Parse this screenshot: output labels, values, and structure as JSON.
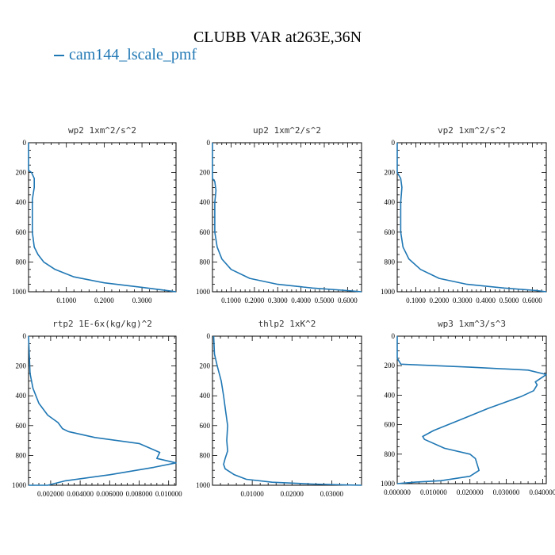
{
  "figure": {
    "title": "CLUBB VAR at263E,36N",
    "legend_label": "cam144_lscale_pmf",
    "line_color": "#1f77b4"
  },
  "chart_data": [
    {
      "type": "line",
      "title": "wp2  1xm^2/s^2",
      "ylim": [
        0,
        1000
      ],
      "yticks": [
        "0",
        "200",
        "400",
        "600",
        "800",
        "1000"
      ],
      "xlim": [
        0,
        0.39
      ],
      "xticks": [
        {
          "v": 0.1,
          "label": "0.1000"
        },
        {
          "v": 0.2,
          "label": "0.2000"
        },
        {
          "v": 0.3,
          "label": "0.3000"
        }
      ],
      "series": [
        {
          "name": "cam144_lscale_pmf",
          "x": [
            0.0,
            0.0,
            0.008,
            0.015,
            0.015,
            0.01,
            0.01,
            0.01,
            0.015,
            0.025,
            0.04,
            0.07,
            0.12,
            0.2,
            0.3,
            0.36,
            0.39
          ],
          "y": [
            0,
            185,
            200,
            240,
            300,
            380,
            500,
            600,
            700,
            750,
            800,
            850,
            900,
            940,
            970,
            990,
            1000
          ]
        }
      ]
    },
    {
      "type": "line",
      "title": "up2  1xm^2/s^2",
      "ylim": [
        0,
        1000
      ],
      "yticks": [
        "0",
        "200",
        "400",
        "600",
        "800",
        "1000"
      ],
      "xlim": [
        0.02,
        0.66
      ],
      "xticks": [
        {
          "v": 0.1,
          "label": "0.1000"
        },
        {
          "v": 0.2,
          "label": "0.2000"
        },
        {
          "v": 0.3,
          "label": "0.3000"
        },
        {
          "v": 0.4,
          "label": "0.4000"
        },
        {
          "v": 0.5,
          "label": "0.5000"
        },
        {
          "v": 0.6,
          "label": "0.6000"
        }
      ],
      "series": [
        {
          "name": "cam144_lscale_pmf",
          "x": [
            0.02,
            0.02,
            0.03,
            0.035,
            0.03,
            0.03,
            0.03,
            0.04,
            0.06,
            0.1,
            0.18,
            0.3,
            0.45,
            0.6,
            0.66
          ],
          "y": [
            0,
            240,
            260,
            320,
            400,
            500,
            600,
            700,
            780,
            850,
            910,
            950,
            975,
            992,
            1000
          ]
        }
      ]
    },
    {
      "type": "line",
      "title": "vp2  1xm^2/s^2",
      "ylim": [
        0,
        1000
      ],
      "yticks": [
        "0",
        "200",
        "400",
        "600",
        "800",
        "1000"
      ],
      "xlim": [
        0.02,
        0.66
      ],
      "xticks": [
        {
          "v": 0.1,
          "label": "0.1000"
        },
        {
          "v": 0.2,
          "label": "0.2000"
        },
        {
          "v": 0.3,
          "label": "0.3000"
        },
        {
          "v": 0.4,
          "label": "0.4000"
        },
        {
          "v": 0.5,
          "label": "0.5000"
        },
        {
          "v": 0.6,
          "label": "0.6000"
        }
      ],
      "series": [
        {
          "name": "cam144_lscale_pmf",
          "x": [
            0.02,
            0.02,
            0.035,
            0.04,
            0.035,
            0.035,
            0.035,
            0.045,
            0.07,
            0.12,
            0.2,
            0.32,
            0.48,
            0.62,
            0.66
          ],
          "y": [
            0,
            200,
            240,
            300,
            400,
            500,
            600,
            700,
            780,
            850,
            910,
            950,
            975,
            992,
            1000
          ]
        }
      ]
    },
    {
      "type": "line",
      "title": "rtp2  1E-6x(kg/kg)^2",
      "ylim": [
        0,
        1000
      ],
      "yticks": [
        "0",
        "200",
        "400",
        "600",
        "800",
        "1000"
      ],
      "xlim": [
        0.0005,
        0.0105
      ],
      "xticks": [
        {
          "v": 0.002,
          "label": "0.002000"
        },
        {
          "v": 0.004,
          "label": "0.004000"
        },
        {
          "v": 0.006,
          "label": "0.006000"
        },
        {
          "v": 0.008,
          "label": "0.008000"
        },
        {
          "v": 0.01,
          "label": "0.010000"
        }
      ],
      "series": [
        {
          "name": "cam144_lscale_pmf",
          "x": [
            0.0005,
            0.0006,
            0.0008,
            0.0012,
            0.0018,
            0.0025,
            0.0028,
            0.0032,
            0.005,
            0.008,
            0.0094,
            0.0092,
            0.0105,
            0.009,
            0.006,
            0.003,
            0.0018,
            0.0005
          ],
          "y": [
            0,
            250,
            350,
            450,
            530,
            580,
            620,
            640,
            680,
            720,
            780,
            820,
            850,
            880,
            930,
            970,
            1000,
            1000
          ]
        }
      ]
    },
    {
      "type": "line",
      "title": "thlp2  1xK^2",
      "ylim": [
        0,
        1000
      ],
      "yticks": [
        "0",
        "200",
        "400",
        "600",
        "800",
        "1000"
      ],
      "xlim": [
        0.0,
        0.0375
      ],
      "xticks": [
        {
          "v": 0.01,
          "label": "0.01000"
        },
        {
          "v": 0.02,
          "label": "0.02000"
        },
        {
          "v": 0.03,
          "label": "0.03000"
        }
      ],
      "series": [
        {
          "name": "cam144_lscale_pmf",
          "x": [
            0.0003,
            0.0005,
            0.0012,
            0.0022,
            0.0028,
            0.0033,
            0.0038,
            0.0036,
            0.0038,
            0.0032,
            0.0028,
            0.0032,
            0.0055,
            0.0085,
            0.015,
            0.025,
            0.033,
            0.0375
          ],
          "y": [
            0,
            120,
            200,
            300,
            400,
            500,
            600,
            700,
            770,
            820,
            860,
            890,
            930,
            960,
            980,
            992,
            998,
            1000
          ]
        }
      ]
    },
    {
      "type": "line",
      "title": "wp3  1xm^3/s^3",
      "ylim": [
        0,
        1000
      ],
      "yticks": [
        "0",
        "200",
        "400",
        "600",
        "800",
        "1000"
      ],
      "xlim": [
        0.0,
        0.041
      ],
      "xticks": [
        {
          "v": 0.0,
          "label": "0.000000"
        },
        {
          "v": 0.01,
          "label": "0.010000"
        },
        {
          "v": 0.02,
          "label": "0.020000"
        },
        {
          "v": 0.03,
          "label": "0.030000"
        },
        {
          "v": 0.04,
          "label": "0.040000"
        }
      ],
      "series": [
        {
          "name": "cam144_lscale_pmf",
          "x": [
            0.0,
            0.0,
            0.001,
            0.02,
            0.036,
            0.041,
            0.038,
            0.0385,
            0.0375,
            0.034,
            0.025,
            0.018,
            0.01,
            0.007,
            0.0075,
            0.013,
            0.02,
            0.0215,
            0.0225,
            0.02,
            0.012,
            0.005,
            0.0
          ],
          "y": [
            0,
            150,
            190,
            210,
            230,
            260,
            310,
            330,
            370,
            410,
            490,
            560,
            640,
            680,
            700,
            760,
            800,
            830,
            910,
            950,
            980,
            990,
            1000
          ]
        }
      ]
    }
  ]
}
